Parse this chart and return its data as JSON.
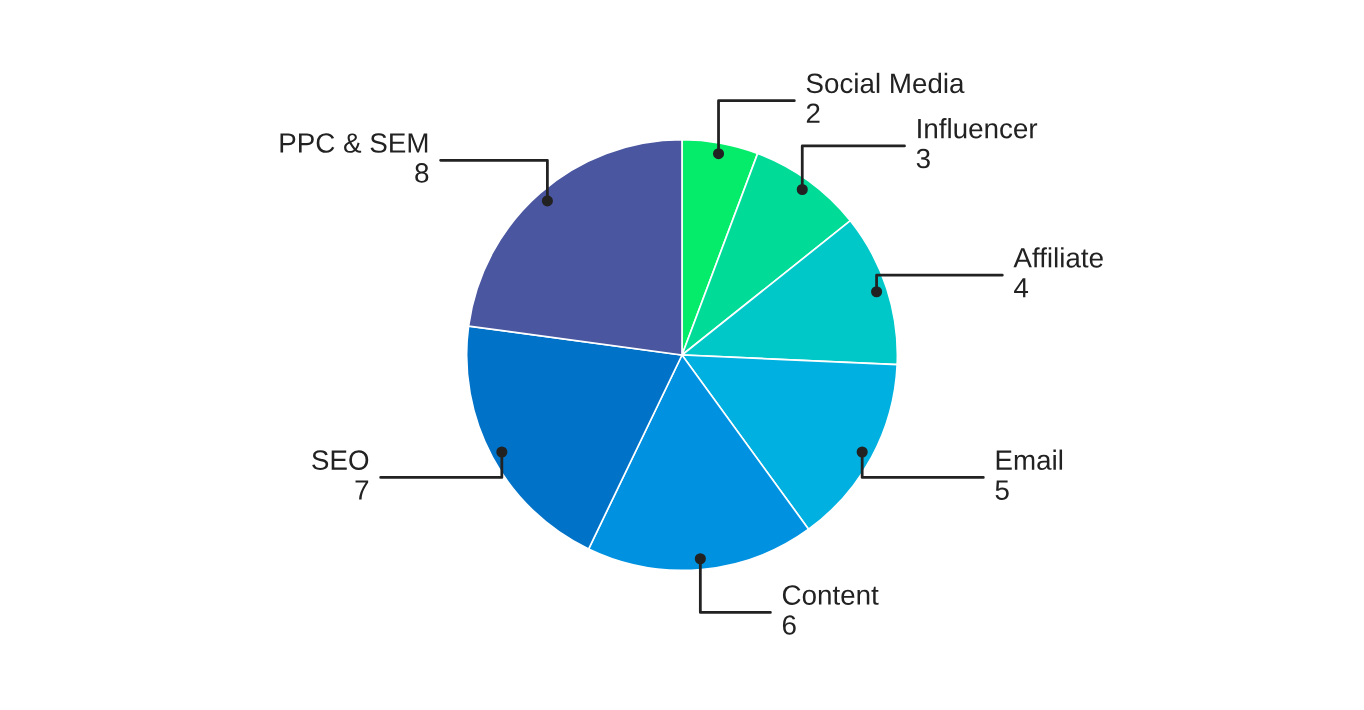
{
  "chart_data": {
    "type": "pie",
    "categories": [
      "Social Media",
      "Influencer",
      "Affiliate",
      "Email",
      "Content",
      "SEO",
      "PPC & SEM"
    ],
    "values": [
      2,
      3,
      4,
      5,
      6,
      7,
      8
    ],
    "colors": [
      "#05ec6a",
      "#00dc98",
      "#00c8c8",
      "#00b0e0",
      "#0092e0",
      "#0072c8",
      "#4a56a0"
    ],
    "data_labels": true
  }
}
